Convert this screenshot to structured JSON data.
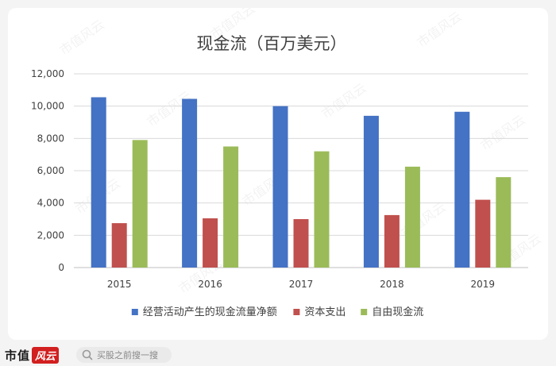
{
  "chart_data": {
    "type": "bar",
    "title": "现金流（百万美元）",
    "categories": [
      "2015",
      "2016",
      "2017",
      "2018",
      "2019"
    ],
    "series": [
      {
        "name": "经营活动产生的现金流量净额",
        "color": "#4472c4",
        "values": [
          10550,
          10450,
          10000,
          9400,
          9650
        ]
      },
      {
        "name": "资本支出",
        "color": "#c0504d",
        "values": [
          2750,
          3050,
          3000,
          3250,
          4200
        ]
      },
      {
        "name": "自由现金流",
        "color": "#9bbb59",
        "values": [
          7900,
          7500,
          7200,
          6250,
          5600
        ]
      }
    ],
    "ylim": [
      0,
      12000
    ],
    "yticks": [
      "0",
      "2,000",
      "4,000",
      "6,000",
      "8,000",
      "10,000",
      "12,000"
    ],
    "grid": true,
    "legend": "bottom"
  },
  "watermark": "市值风云",
  "footer": {
    "brand": "市值",
    "brand_logo": "风云",
    "search_placeholder": "买股之前搜一搜"
  }
}
